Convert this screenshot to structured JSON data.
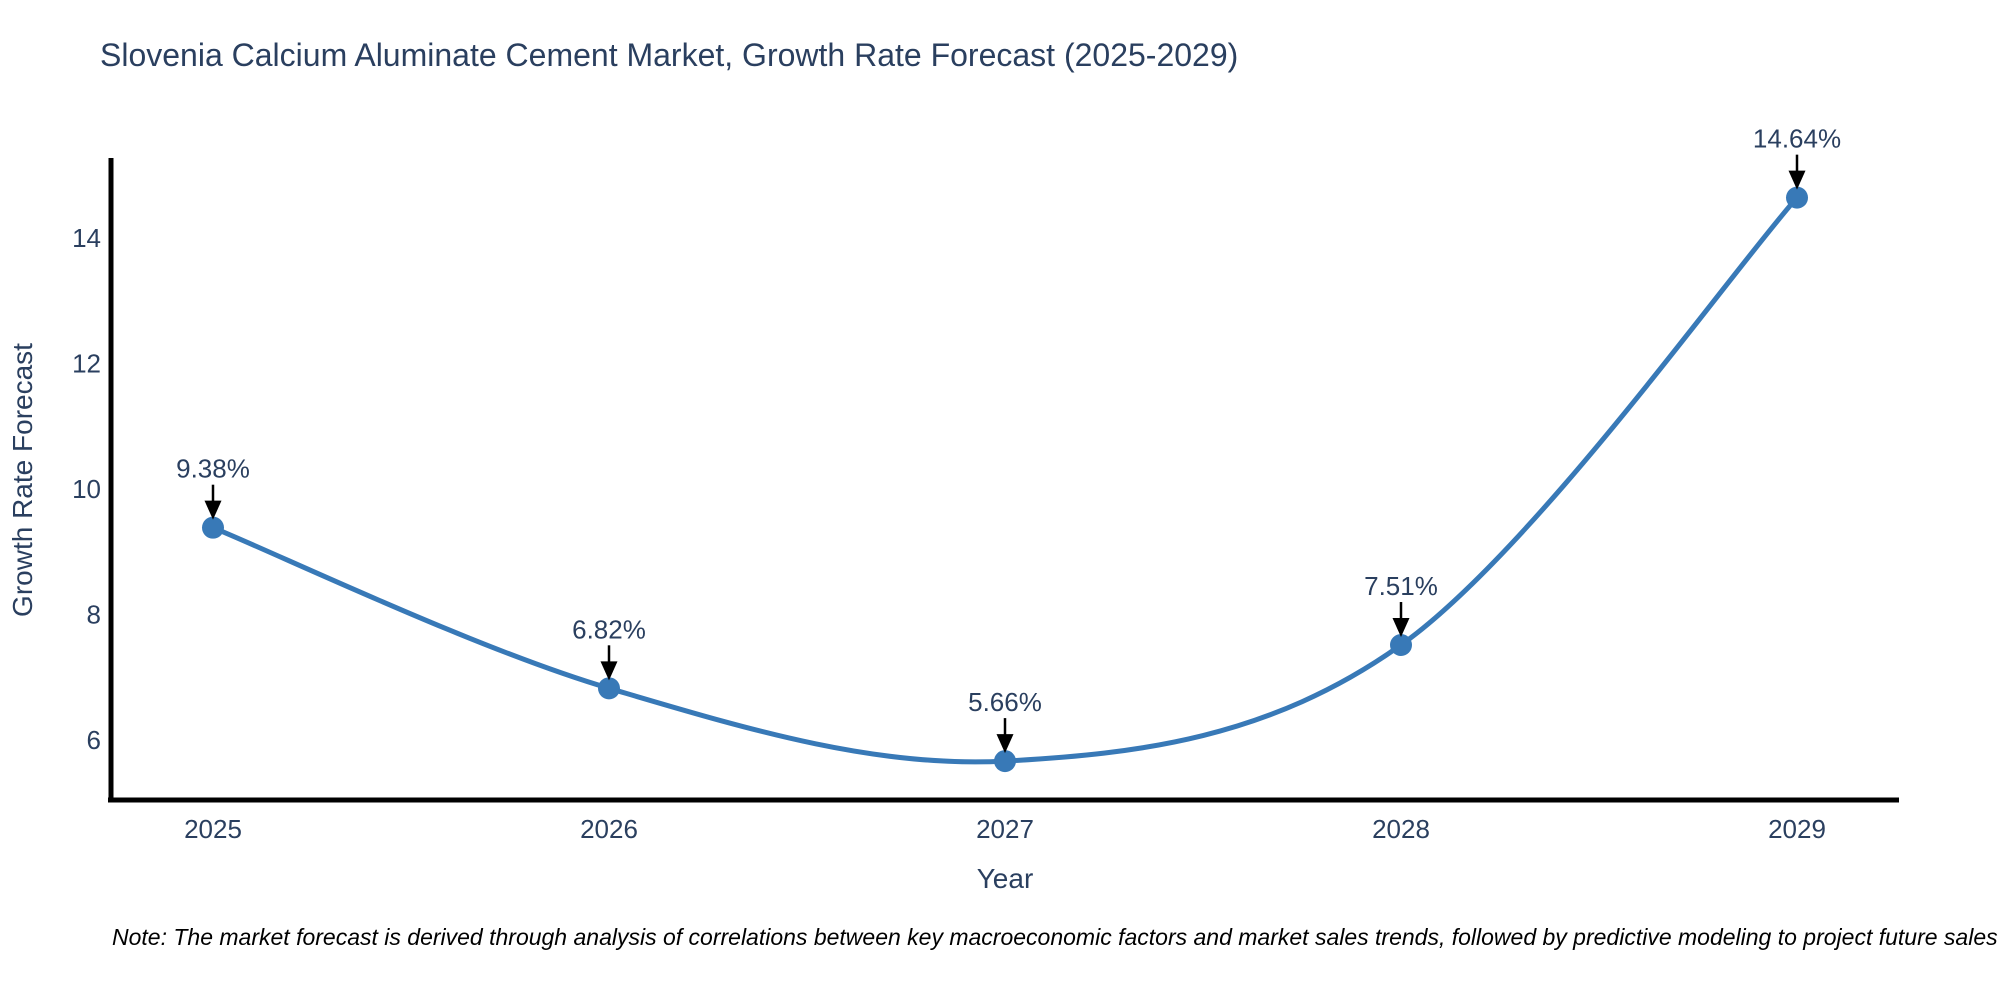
{
  "chart_data": {
    "type": "line",
    "title": "Slovenia Calcium Aluminate Cement Market, Growth Rate Forecast (2025-2029)",
    "xlabel": "Year",
    "ylabel": "Growth Rate Forecast",
    "categories": [
      "2025",
      "2026",
      "2027",
      "2028",
      "2029"
    ],
    "series": [
      {
        "name": "Growth Rate Forecast",
        "values": [
          9.38,
          6.82,
          5.66,
          7.51,
          14.64
        ],
        "point_labels": [
          "9.38%",
          "6.82%",
          "5.66%",
          "7.51%",
          "14.64%"
        ]
      }
    ],
    "yticks": [
      6,
      8,
      10,
      12,
      14
    ],
    "ylim": [
      5.04,
      15.24
    ],
    "grid": false,
    "legend_position": "none",
    "line_style": "smooth-spline",
    "annotation_arrows": true,
    "colors": {
      "line": "#3879b7",
      "marker": "#3879b7",
      "axis": "#000000",
      "text": "#2a3f5f",
      "arrow": "#000000",
      "background": "#ffffff"
    },
    "note": "Note: The market forecast is derived through analysis of correlations between key macroeconomic factors and market sales trends, followed by predictive modeling to project future sales"
  }
}
